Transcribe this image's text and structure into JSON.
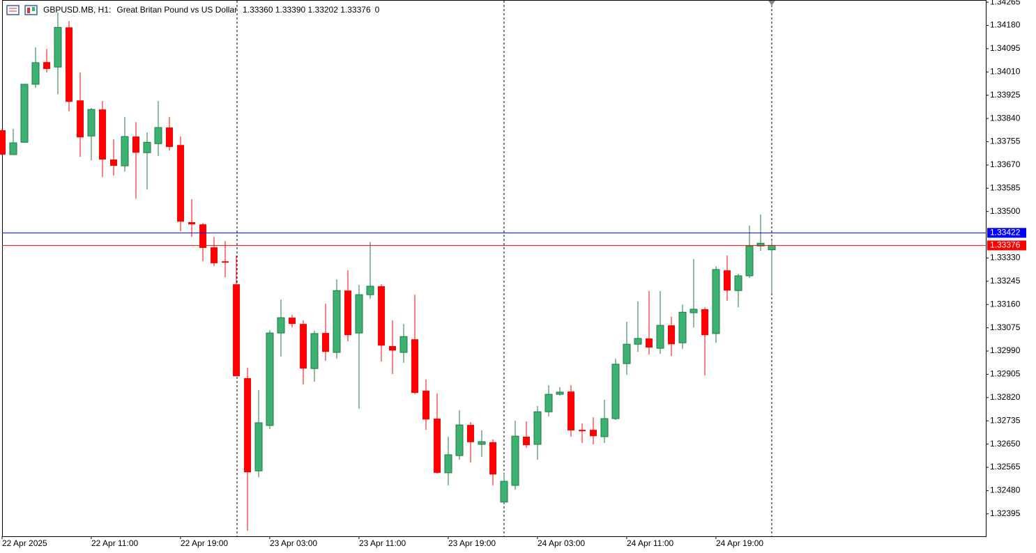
{
  "chart_data": {
    "type": "candlestick",
    "title": "GBPUSD.MB, H1:",
    "subtitle": "Great Britan Pound vs US Dollar",
    "quote": "1.33360 1.33390 1.33202 1.33376",
    "volume": 0,
    "up_color": "#3cb371",
    "down_color": "#ff0000",
    "categories": [
      "22 Apr 2025",
      null,
      null,
      null,
      null,
      null,
      null,
      null,
      "22 Apr 11:00",
      null,
      null,
      null,
      null,
      null,
      null,
      null,
      "22 Apr 19:00",
      null,
      null,
      null,
      null,
      null,
      null,
      null,
      "23 Apr 03:00",
      null,
      null,
      null,
      null,
      null,
      null,
      null,
      "23 Apr 11:00",
      null,
      null,
      null,
      null,
      null,
      null,
      null,
      "23 Apr 19:00",
      null,
      null,
      null,
      null,
      null,
      null,
      null,
      "24 Apr 03:00",
      null,
      null,
      null,
      null,
      null,
      null,
      null,
      "24 Apr 11:00",
      null,
      null,
      null,
      null,
      null,
      null,
      null,
      "24 Apr 19:00",
      null,
      null,
      null,
      null,
      null
    ],
    "open": [
      1.33797,
      1.33708,
      1.33753,
      1.33965,
      1.34046,
      1.34028,
      1.34173,
      1.33906,
      1.33776,
      1.33873,
      1.3369,
      1.33667,
      1.33774,
      1.33715,
      1.33748,
      1.33807,
      1.33743,
      1.33461,
      1.33453,
      1.33369,
      1.33318,
      1.33234,
      1.32891,
      1.32552,
      1.32718,
      1.33056,
      1.33112,
      1.33089,
      1.32926,
      1.33056,
      1.32985,
      1.33211,
      1.33056,
      1.33196,
      1.33227,
      1.33008,
      1.32985,
      1.33033,
      1.32845,
      1.32743,
      1.32545,
      1.32608,
      1.3272,
      1.32649,
      1.32657,
      1.32438,
      1.32499,
      1.32677,
      1.32649,
      1.32768,
      1.32832,
      1.32842,
      1.32702,
      1.32702,
      1.32677,
      1.32743,
      1.32944,
      1.33015,
      1.33036,
      1.33,
      1.33084,
      1.3302,
      1.3313,
      1.33143,
      1.33054,
      1.33285,
      1.33211,
      1.33265,
      1.33374,
      1.3336
    ],
    "high": [
      1.33802,
      1.33802,
      1.33965,
      1.341,
      1.34094,
      1.34227,
      1.34196,
      1.34008,
      1.33878,
      1.33904,
      1.33764,
      1.33845,
      1.33827,
      1.33789,
      1.33904,
      1.33845,
      1.33774,
      1.33545,
      1.33458,
      1.33407,
      1.33392,
      1.33339,
      1.32929,
      1.32847,
      1.33066,
      1.33178,
      1.33122,
      1.33102,
      1.33064,
      1.33163,
      1.33252,
      1.33285,
      1.33232,
      1.33389,
      1.33234,
      1.33102,
      1.33089,
      1.33196,
      1.32886,
      1.32835,
      1.32677,
      1.32774,
      1.3273,
      1.327,
      1.32667,
      1.32542,
      1.32735,
      1.32733,
      1.32789,
      1.32865,
      1.32858,
      1.32865,
      1.32725,
      1.32748,
      1.32812,
      1.32962,
      1.33097,
      1.33171,
      1.33209,
      1.33209,
      1.33115,
      1.3316,
      1.33326,
      1.3315,
      1.333,
      1.33339,
      1.33272,
      1.33448,
      1.33489,
      1.3339
    ],
    "low": [
      1.33705,
      1.33708,
      1.33751,
      1.33952,
      1.34008,
      1.33929,
      1.33865,
      1.337,
      1.33687,
      1.33626,
      1.33631,
      1.33646,
      1.33547,
      1.3358,
      1.33703,
      1.33723,
      1.33428,
      1.33407,
      1.33318,
      1.333,
      1.3326,
      1.32898,
      1.32333,
      1.32529,
      1.32705,
      1.3297,
      1.33076,
      1.32868,
      1.32878,
      1.32954,
      1.32962,
      1.33026,
      1.32779,
      1.33181,
      1.32952,
      1.32906,
      1.32947,
      1.32832,
      1.32702,
      1.32542,
      1.32499,
      1.32593,
      1.32583,
      1.32603,
      1.32499,
      1.32435,
      1.32483,
      1.32636,
      1.32593,
      1.32751,
      1.32827,
      1.32677,
      1.32654,
      1.32649,
      1.32654,
      1.32738,
      1.32903,
      1.32987,
      1.32977,
      1.3298,
      1.32972,
      1.32998,
      1.33076,
      1.32901,
      1.3302,
      1.33173,
      1.3315,
      1.33257,
      1.33356,
      1.33202
    ],
    "close": [
      1.33708,
      1.33751,
      1.33965,
      1.34044,
      1.34021,
      1.34173,
      1.33901,
      1.33771,
      1.33873,
      1.3369,
      1.33667,
      1.33774,
      1.33715,
      1.33753,
      1.33807,
      1.33736,
      1.33463,
      1.33453,
      1.33367,
      1.33311,
      1.33313,
      1.32898,
      1.32547,
      1.32728,
      1.33056,
      1.33112,
      1.33089,
      1.32926,
      1.33054,
      1.32987,
      1.33211,
      1.33048,
      1.33196,
      1.33227,
      1.3301,
      1.32992,
      1.33043,
      1.32837,
      1.3274,
      1.32545,
      1.32611,
      1.3272,
      1.32657,
      1.32659,
      1.32539,
      1.32514,
      1.32679,
      1.32646,
      1.32768,
      1.32832,
      1.3284,
      1.327,
      1.32697,
      1.32679,
      1.32743,
      1.32942,
      1.33015,
      1.33036,
      1.33003,
      1.33084,
      1.33015,
      1.33132,
      1.33143,
      1.33048,
      1.33288,
      1.33211,
      1.33265,
      1.33374,
      1.33384,
      1.33376
    ],
    "ylim": [
      1.32313,
      1.34273
    ],
    "yticks": [
      1.34265,
      {
        "value": 1.3418,
        "label": "1.34180"
      },
      1.34095,
      {
        "value": 1.3401,
        "label": "1.34010"
      },
      1.33925,
      {
        "value": 1.3384,
        "label": "1.33840"
      },
      1.33755,
      {
        "value": 1.3367,
        "label": "1.33670"
      },
      1.33585,
      {
        "value": 1.335,
        "label": "1.33500"
      },
      {
        "value": 1.3333,
        "label": "1.33330"
      },
      1.33245,
      {
        "value": 1.3316,
        "label": "1.33160"
      },
      1.33075,
      {
        "value": 1.3299,
        "label": "1.32990"
      },
      1.32905,
      {
        "value": 1.3282,
        "label": "1.32820"
      },
      1.32735,
      {
        "value": 1.3265,
        "label": "1.32650"
      },
      1.32565,
      {
        "value": 1.3248,
        "label": "1.32480"
      },
      1.32395
    ],
    "price_lines": [
      {
        "value": 1.33422,
        "color": "#0000ff"
      },
      {
        "value": 1.33376,
        "color": "#ff0000"
      }
    ]
  }
}
